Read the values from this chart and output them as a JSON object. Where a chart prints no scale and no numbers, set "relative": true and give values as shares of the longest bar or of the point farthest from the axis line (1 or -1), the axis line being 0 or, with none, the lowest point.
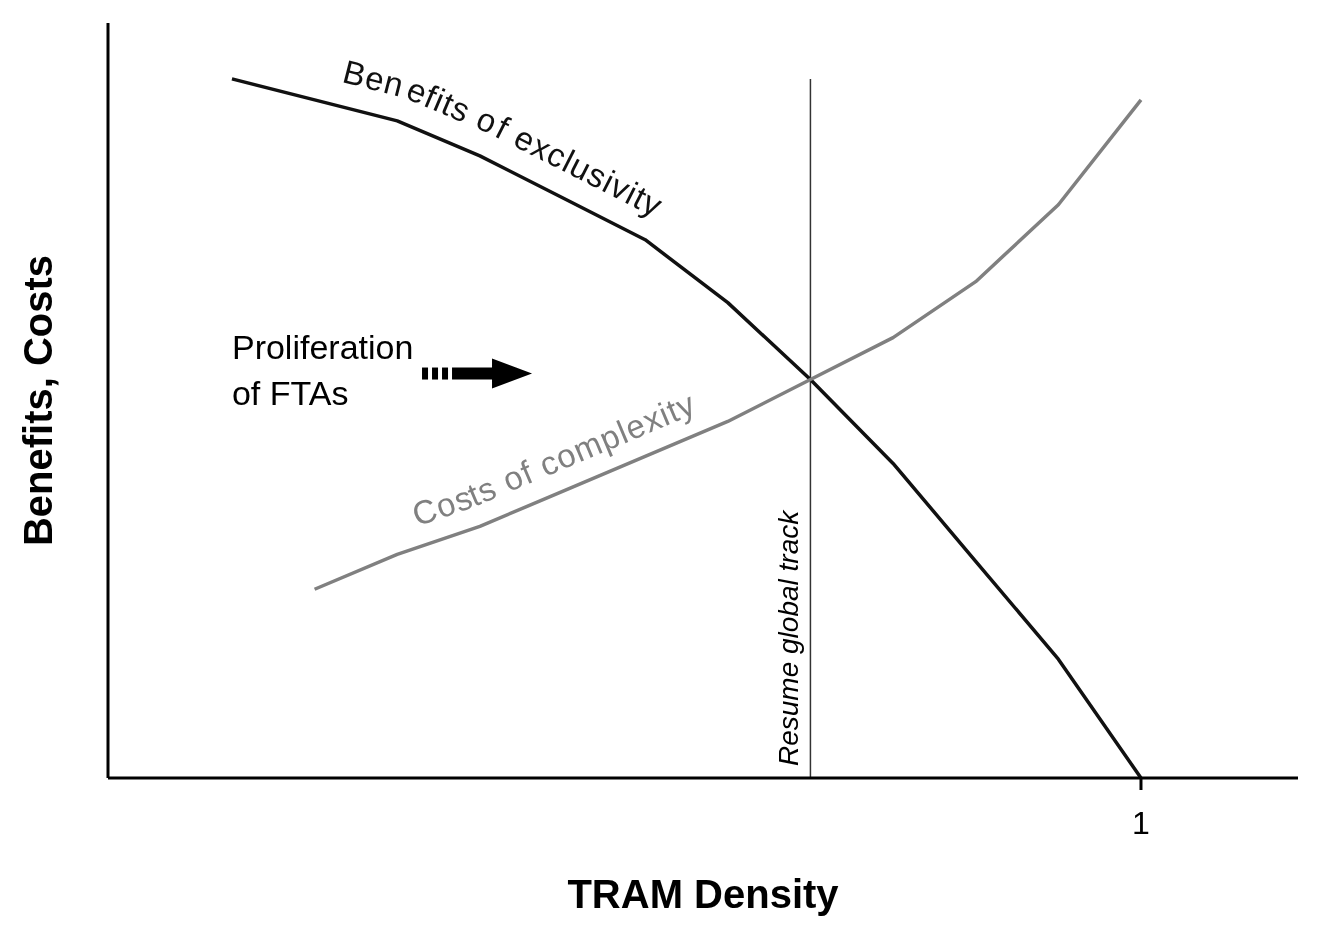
{
  "chart_data": {
    "type": "line",
    "relative": true,
    "xlabel": "TRAM Density",
    "ylabel": "Benefits, Costs",
    "categories": [
      null,
      null,
      null,
      null,
      null,
      null,
      null,
      null,
      null,
      null,
      null,
      null
    ],
    "series": [
      {
        "name": "Benefits of exclusivity",
        "color": "#111111",
        "values": [
          1,
          0.97,
          0.94,
          0.89,
          0.83,
          0.77,
          0.68,
          0.57,
          0.45,
          0.31,
          0.17,
          0
        ]
      },
      {
        "name": "Costs of complexity",
        "color": "#808080",
        "values": [
          null,
          0.27,
          0.32,
          0.36,
          0.41,
          0.46,
          0.51,
          0.57,
          0.63,
          0.71,
          0.82,
          0.97
        ]
      }
    ],
    "ref_lines": [
      {
        "axis": "x",
        "label": "Resume global track",
        "color": "#333333"
      }
    ],
    "annotations": [
      "Proliferation of FTAs",
      "1"
    ],
    "marker": "none",
    "grid": false,
    "legend": false
  }
}
